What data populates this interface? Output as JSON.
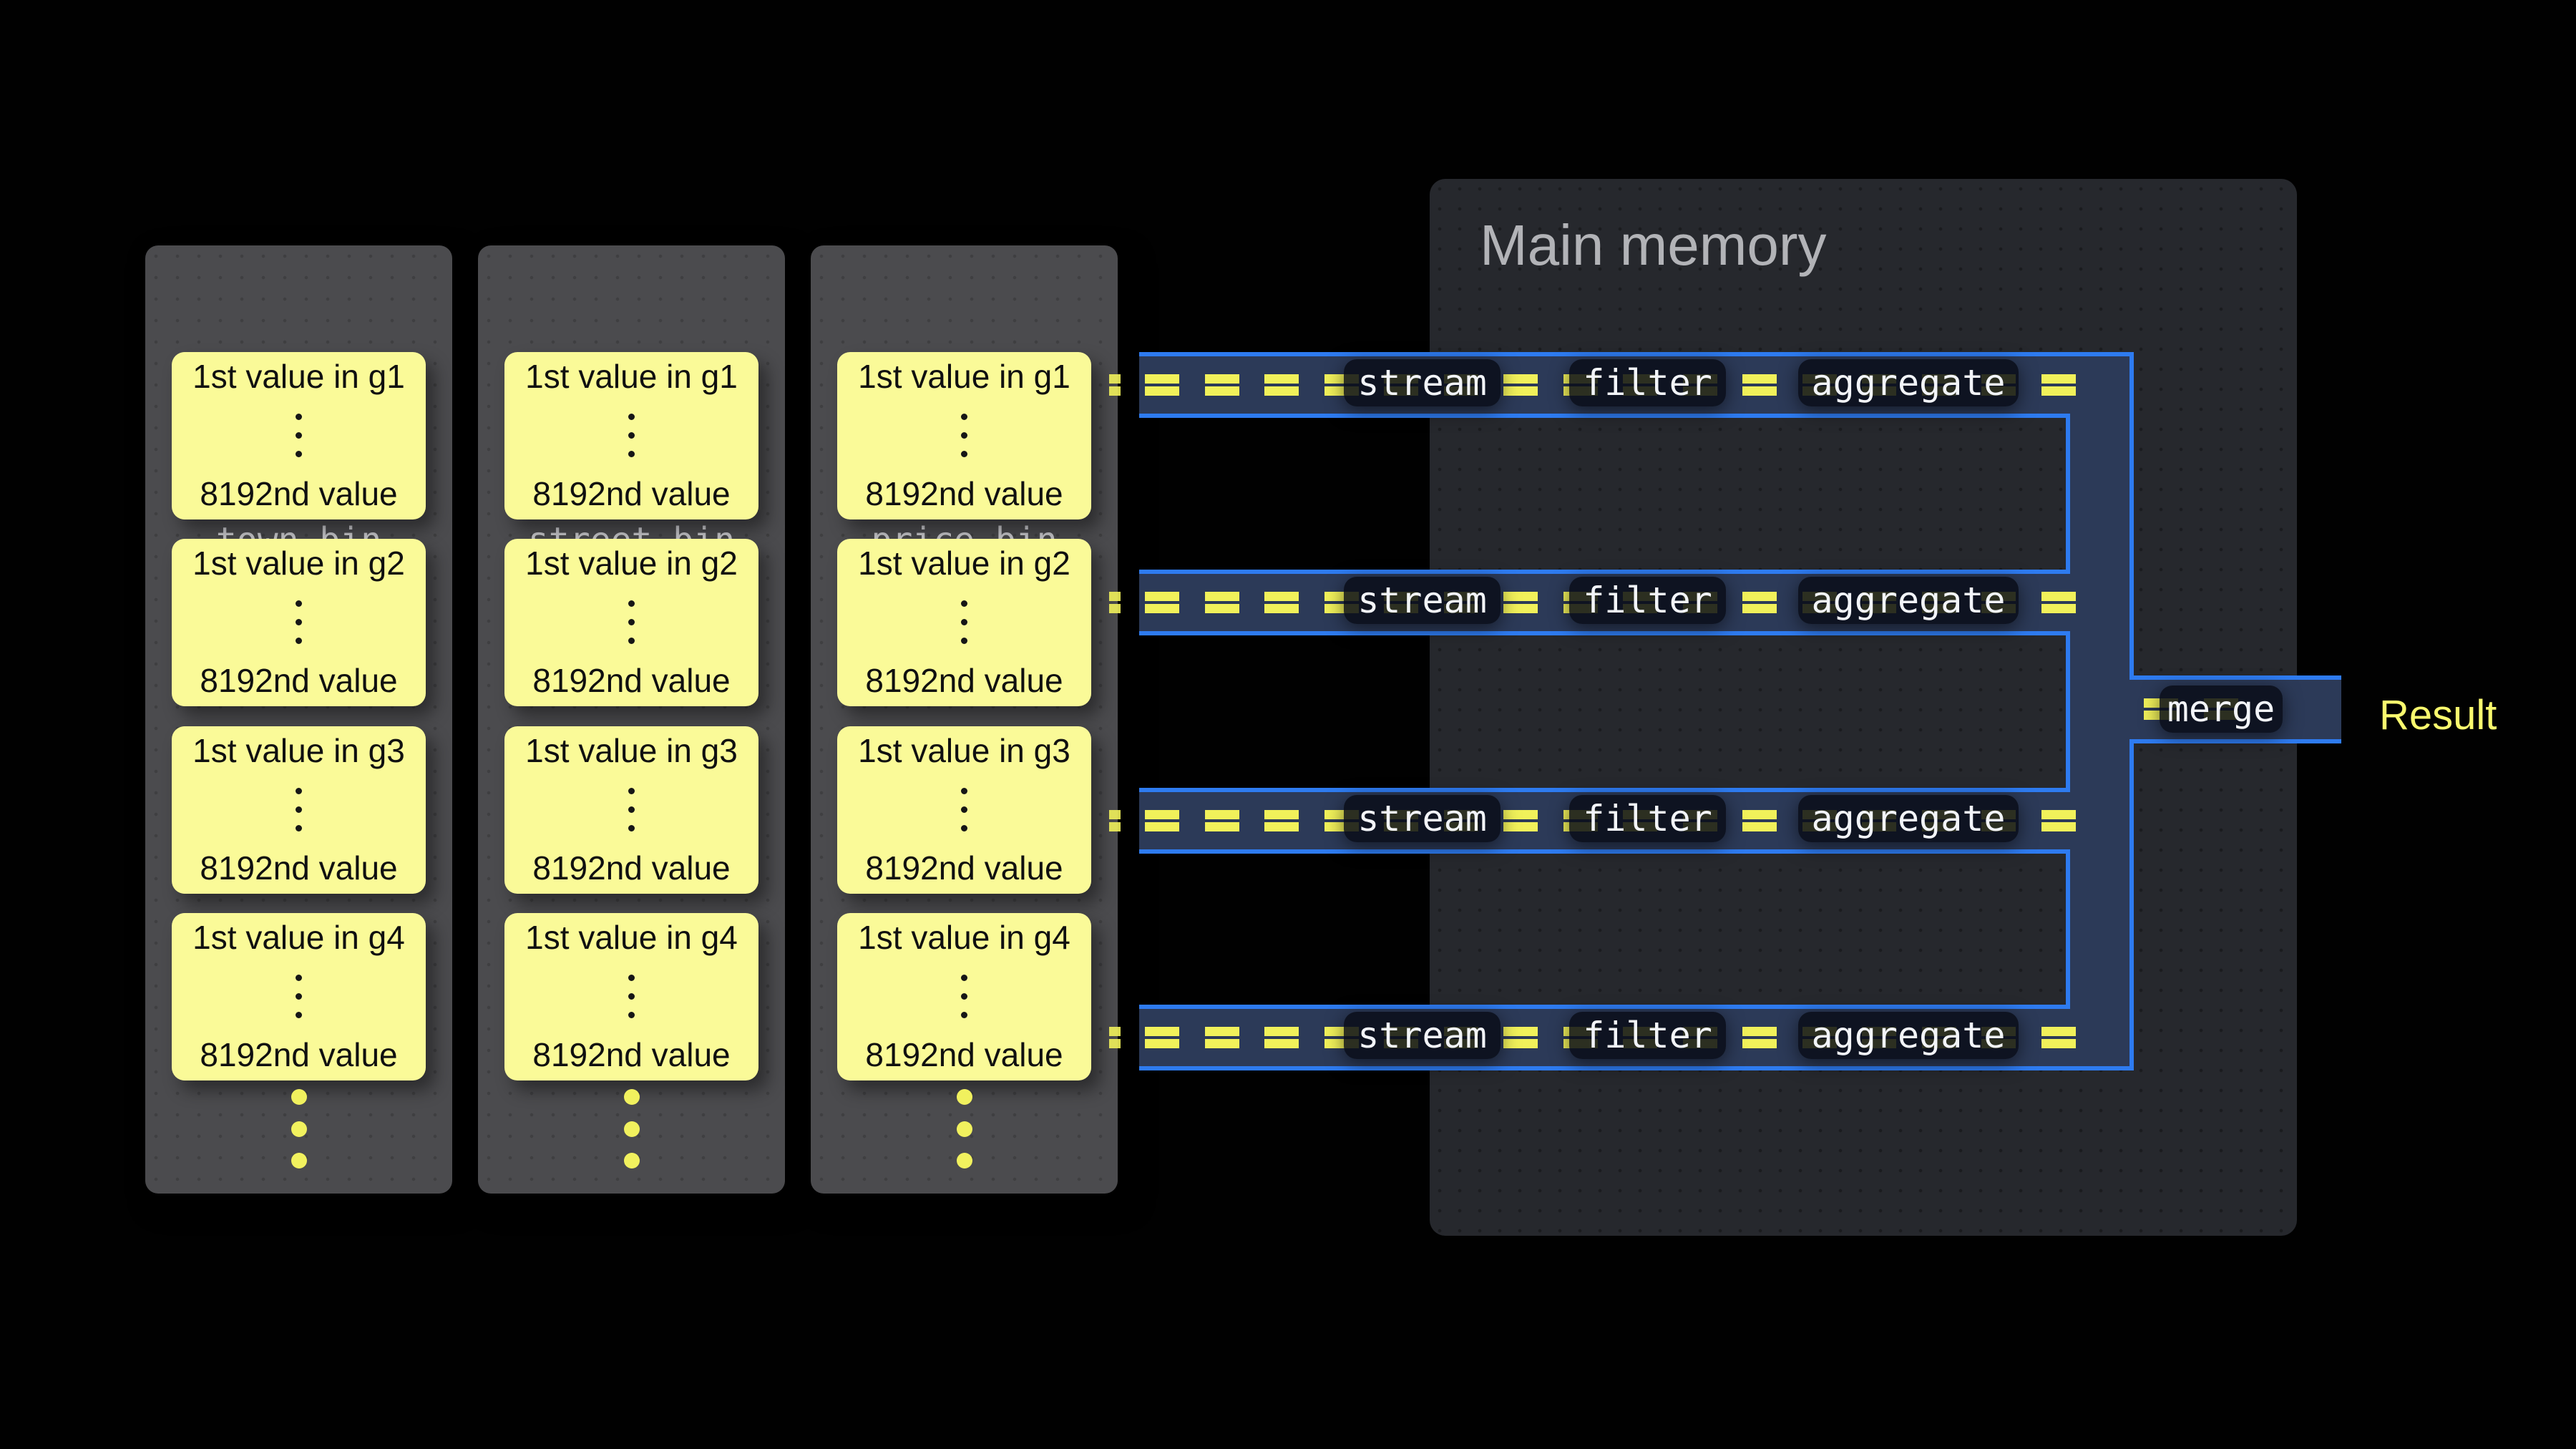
{
  "files": [
    {
      "name": "town.bin",
      "blocks": [
        {
          "top": "1st value in g1",
          "bottom": "8192nd value"
        },
        {
          "top": "1st value in g2",
          "bottom": "8192nd value"
        },
        {
          "top": "1st value in g3",
          "bottom": "8192nd value"
        },
        {
          "top": "1st value in g4",
          "bottom": "8192nd value"
        }
      ]
    },
    {
      "name": "street.bin",
      "blocks": [
        {
          "top": "1st value in g1",
          "bottom": "8192nd value"
        },
        {
          "top": "1st value in g2",
          "bottom": "8192nd value"
        },
        {
          "top": "1st value in g3",
          "bottom": "8192nd value"
        },
        {
          "top": "1st value in g4",
          "bottom": "8192nd value"
        }
      ]
    },
    {
      "name": "price.bin",
      "blocks": [
        {
          "top": "1st value in g1",
          "bottom": "8192nd value"
        },
        {
          "top": "1st value in g2",
          "bottom": "8192nd value"
        },
        {
          "top": "1st value in g3",
          "bottom": "8192nd value"
        },
        {
          "top": "1st value in g4",
          "bottom": "8192nd value"
        }
      ]
    }
  ],
  "memory": {
    "title": "Main memory"
  },
  "pipeline": {
    "row_count": 4,
    "stages": [
      "stream",
      "filter",
      "aggregate"
    ],
    "merge_label": "merge",
    "result_label": "Result"
  },
  "colors": {
    "background": "#010101",
    "file_panel": "#4B4B4E",
    "file_name_gray": "#C9C9CD",
    "block_yellow": "#FAFA98",
    "chunk_yellow": "#F1F15A",
    "pipe_fill": "#2C3A58",
    "pipe_border_blue": "#2E7BF0",
    "stage_box_fill": "#090D18",
    "memory_panel": "#26282D",
    "memory_title_gray": "#B2B3B7",
    "result_yellow": "#FAFA6E"
  }
}
